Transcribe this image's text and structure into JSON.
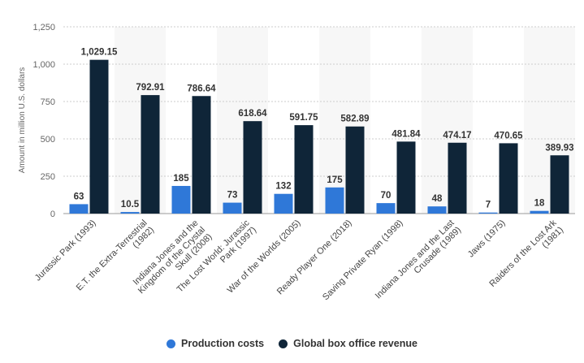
{
  "colors": {
    "production": "#2f78d8",
    "revenue": "#0f2538",
    "grid": "#cccccc",
    "banding": "#f7f7f7"
  },
  "chart_data": {
    "type": "bar",
    "ylabel": "Amount in million U.S. dollars",
    "ylim": [
      0,
      1250
    ],
    "yticks": [
      0,
      250,
      500,
      750,
      1000,
      1250
    ],
    "ytick_labels": [
      "0",
      "250",
      "500",
      "750",
      "1,000",
      "1,250"
    ],
    "grid": true,
    "legend_position": "bottom-center",
    "categories": [
      "Jurassic Park (1993)",
      "E.T. the Extra-Terrestrial (1982)",
      "Indiana Jones and the Kingdom of the Crystal Skull (2008)",
      "The Lost World: Jurassic Park (1997)",
      "War of the Worlds (2005)",
      "Ready Player One (2018)",
      "Saving Private Ryan (1998)",
      "Indiana Jones and the Last Crusade (1989)",
      "Jaws (1975)",
      "Raiders of the Lost Ark (1981)"
    ],
    "series": [
      {
        "name": "Production costs",
        "values": [
          63,
          10.5,
          185,
          73,
          132,
          175,
          70,
          48,
          7,
          18
        ],
        "labels": [
          "63",
          "10.5",
          "185",
          "73",
          "132",
          "175",
          "70",
          "48",
          "7",
          "18"
        ]
      },
      {
        "name": "Global box office revenue",
        "values": [
          1029.15,
          792.91,
          786.64,
          618.64,
          591.75,
          582.89,
          481.84,
          474.17,
          470.65,
          389.93
        ],
        "labels": [
          "1,029.15",
          "792.91",
          "786.64",
          "618.64",
          "591.75",
          "582.89",
          "481.84",
          "474.17",
          "470.65",
          "389.93"
        ]
      }
    ]
  }
}
